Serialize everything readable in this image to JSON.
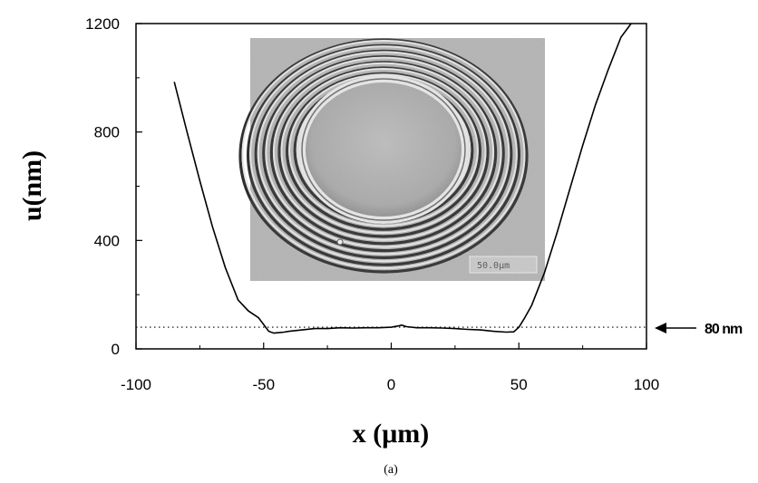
{
  "chart_data": {
    "type": "line",
    "xlabel": "x (μm)",
    "ylabel": "u(nm)",
    "xlim": [
      -100,
      100
    ],
    "ylim": [
      0,
      1200
    ],
    "x_ticks": [
      -100,
      -50,
      0,
      50,
      100
    ],
    "x_tick_labels": [
      "-100",
      "-50",
      "0",
      "50",
      "100"
    ],
    "y_ticks": [
      0,
      400,
      800,
      1200
    ],
    "y_tick_labels": [
      "0",
      "400",
      "800",
      "1200"
    ],
    "grid": false,
    "series": [
      {
        "x": [
          -85,
          -80,
          -75,
          -70,
          -65,
          -60,
          -56,
          -52,
          -50,
          -48,
          -46,
          -44,
          -42,
          -40,
          -35,
          -30,
          -25,
          -20,
          -15,
          -10,
          -5,
          0,
          3,
          4,
          6,
          10,
          15,
          20,
          25,
          30,
          35,
          40,
          45,
          48,
          50,
          52,
          55,
          60,
          65,
          70,
          75,
          80,
          85,
          90,
          94
        ],
        "y": [
          985,
          800,
          620,
          450,
          300,
          180,
          140,
          115,
          90,
          65,
          58,
          60,
          62,
          65,
          70,
          75,
          75,
          78,
          77,
          78,
          78,
          80,
          85,
          88,
          82,
          78,
          78,
          77,
          75,
          72,
          70,
          65,
          62,
          63,
          80,
          110,
          160,
          280,
          430,
          590,
          750,
          900,
          1030,
          1150,
          1200
        ]
      }
    ],
    "reference_line": {
      "y": 80,
      "style": "dotted",
      "label": "80 nm"
    },
    "inset": {
      "type": "interference-fringe-micrograph",
      "scale_label": "50.0µm"
    },
    "caption": "(a)"
  }
}
